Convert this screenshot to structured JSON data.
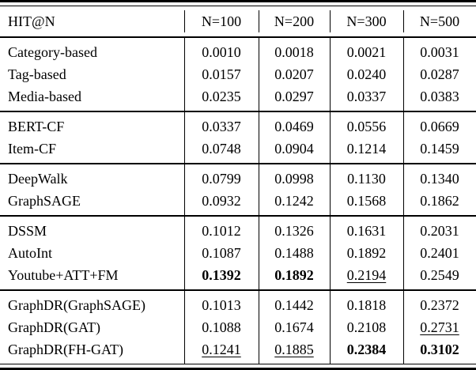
{
  "colors": {
    "text": "#000000",
    "background": "#ffffff",
    "rule": "#000000"
  },
  "table": {
    "header": {
      "label": "HIT@N",
      "columns": [
        "N=100",
        "N=200",
        "N=300",
        "N=500"
      ]
    },
    "groups": [
      {
        "rows": [
          {
            "label": "Category-based",
            "values": [
              "0.0010",
              "0.0018",
              "0.0021",
              "0.0031"
            ],
            "styles": [
              "",
              "",
              "",
              ""
            ]
          },
          {
            "label": "Tag-based",
            "values": [
              "0.0157",
              "0.0207",
              "0.0240",
              "0.0287"
            ],
            "styles": [
              "",
              "",
              "",
              ""
            ]
          },
          {
            "label": "Media-based",
            "values": [
              "0.0235",
              "0.0297",
              "0.0337",
              "0.0383"
            ],
            "styles": [
              "",
              "",
              "",
              ""
            ]
          }
        ]
      },
      {
        "rows": [
          {
            "label": "BERT-CF",
            "values": [
              "0.0337",
              "0.0469",
              "0.0556",
              "0.0669"
            ],
            "styles": [
              "",
              "",
              "",
              ""
            ]
          },
          {
            "label": "Item-CF",
            "values": [
              "0.0748",
              "0.0904",
              "0.1214",
              "0.1459"
            ],
            "styles": [
              "",
              "",
              "",
              ""
            ]
          }
        ]
      },
      {
        "rows": [
          {
            "label": "DeepWalk",
            "values": [
              "0.0799",
              "0.0998",
              "0.1130",
              "0.1340"
            ],
            "styles": [
              "",
              "",
              "",
              ""
            ]
          },
          {
            "label": "GraphSAGE",
            "values": [
              "0.0932",
              "0.1242",
              "0.1568",
              "0.1862"
            ],
            "styles": [
              "",
              "",
              "",
              ""
            ]
          }
        ]
      },
      {
        "rows": [
          {
            "label": "DSSM",
            "values": [
              "0.1012",
              "0.1326",
              "0.1631",
              "0.2031"
            ],
            "styles": [
              "",
              "",
              "",
              ""
            ]
          },
          {
            "label": "AutoInt",
            "values": [
              "0.1087",
              "0.1488",
              "0.1892",
              "0.2401"
            ],
            "styles": [
              "",
              "",
              "",
              ""
            ]
          },
          {
            "label": "Youtube+ATT+FM",
            "values": [
              "0.1392",
              "0.1892",
              "0.2194",
              "0.2549"
            ],
            "styles": [
              "bold",
              "bold",
              "underline",
              ""
            ]
          }
        ]
      },
      {
        "rows": [
          {
            "label": "GraphDR(GraphSAGE)",
            "values": [
              "0.1013",
              "0.1442",
              "0.1818",
              "0.2372"
            ],
            "styles": [
              "",
              "",
              "",
              ""
            ]
          },
          {
            "label": "GraphDR(GAT)",
            "values": [
              "0.1088",
              "0.1674",
              "0.2108",
              "0.2731"
            ],
            "styles": [
              "",
              "",
              "",
              "underline"
            ]
          },
          {
            "label": "GraphDR(FH-GAT)",
            "values": [
              "0.1241",
              "0.1885",
              "0.2384",
              "0.3102"
            ],
            "styles": [
              "underline",
              "underline",
              "bold",
              "bold"
            ]
          }
        ]
      }
    ]
  }
}
